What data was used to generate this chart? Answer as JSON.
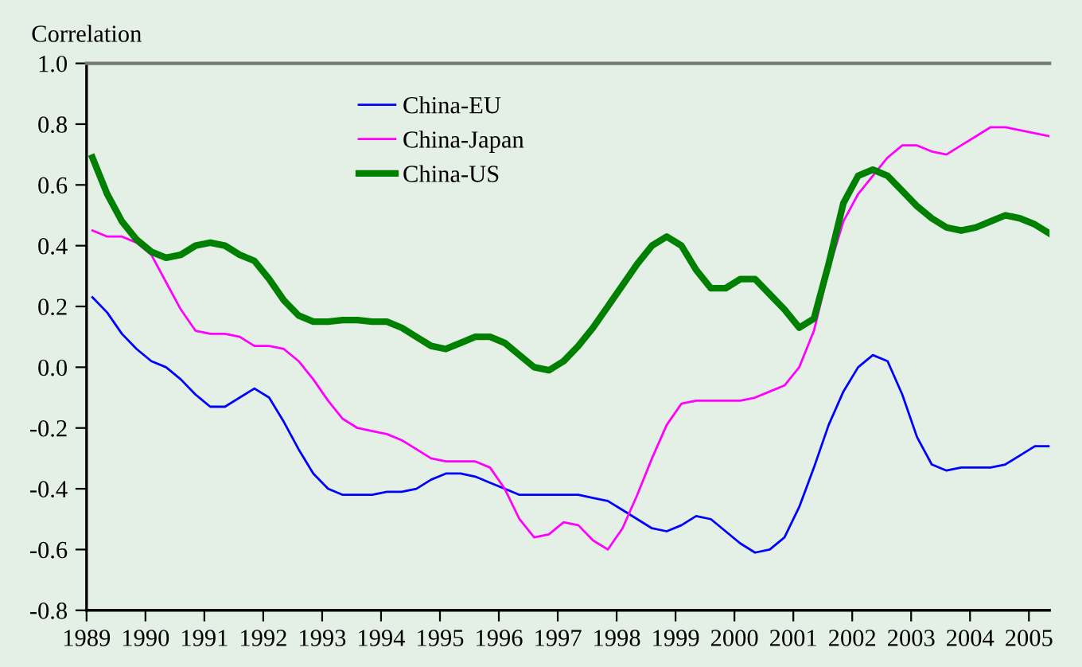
{
  "chart_data": {
    "type": "line",
    "ylabel": "Correlation",
    "x": [
      1989.1,
      1989.35,
      1989.6,
      1989.85,
      1990.1,
      1990.35,
      1990.6,
      1990.85,
      1991.1,
      1991.35,
      1991.6,
      1991.85,
      1992.1,
      1992.35,
      1992.6,
      1992.85,
      1993.1,
      1993.35,
      1993.6,
      1993.85,
      1994.1,
      1994.35,
      1994.6,
      1994.85,
      1995.1,
      1995.35,
      1995.6,
      1995.85,
      1996.1,
      1996.35,
      1996.6,
      1996.85,
      1997.1,
      1997.35,
      1997.6,
      1997.85,
      1998.1,
      1998.35,
      1998.6,
      1998.85,
      1999.1,
      1999.35,
      1999.6,
      1999.85,
      2000.1,
      2000.35,
      2000.6,
      2000.85,
      2001.1,
      2001.35,
      2001.6,
      2001.85,
      2002.1,
      2002.35,
      2002.6,
      2002.85,
      2003.1,
      2003.35,
      2003.6,
      2003.85,
      2004.1,
      2004.35,
      2004.6,
      2004.85,
      2005.1,
      2005.35
    ],
    "series": [
      {
        "name": "China-EU",
        "color": "#0000ff",
        "values": [
          0.23,
          0.18,
          0.11,
          0.06,
          0.02,
          0.0,
          -0.04,
          -0.09,
          -0.13,
          -0.13,
          -0.1,
          -0.07,
          -0.1,
          -0.18,
          -0.27,
          -0.35,
          -0.4,
          -0.42,
          -0.42,
          -0.42,
          -0.41,
          -0.41,
          -0.4,
          -0.37,
          -0.35,
          -0.35,
          -0.36,
          -0.38,
          -0.4,
          -0.42,
          -0.42,
          -0.42,
          -0.42,
          -0.42,
          -0.43,
          -0.44,
          -0.47,
          -0.5,
          -0.53,
          -0.54,
          -0.52,
          -0.49,
          -0.5,
          -0.54,
          -0.58,
          -0.61,
          -0.6,
          -0.56,
          -0.46,
          -0.33,
          -0.19,
          -0.08,
          0.0,
          0.04,
          0.02,
          -0.09,
          -0.23,
          -0.32,
          -0.34,
          -0.33,
          -0.33,
          -0.33,
          -0.32,
          -0.29,
          -0.26,
          -0.26
        ]
      },
      {
        "name": "China-Japan",
        "color": "#ff00ff",
        "values": [
          0.45,
          0.43,
          0.43,
          0.41,
          0.37,
          0.28,
          0.19,
          0.12,
          0.11,
          0.11,
          0.1,
          0.07,
          0.07,
          0.06,
          0.02,
          -0.04,
          -0.11,
          -0.17,
          -0.2,
          -0.21,
          -0.22,
          -0.24,
          -0.27,
          -0.3,
          -0.31,
          -0.31,
          -0.31,
          -0.33,
          -0.4,
          -0.5,
          -0.56,
          -0.55,
          -0.51,
          -0.52,
          -0.57,
          -0.6,
          -0.53,
          -0.42,
          -0.3,
          -0.19,
          -0.12,
          -0.11,
          -0.11,
          -0.11,
          -0.11,
          -0.1,
          -0.08,
          -0.06,
          0.0,
          0.12,
          0.32,
          0.48,
          0.57,
          0.63,
          0.69,
          0.73,
          0.73,
          0.71,
          0.7,
          0.73,
          0.76,
          0.79,
          0.79,
          0.78,
          0.77,
          0.76
        ]
      },
      {
        "name": "China-US",
        "color": "#008000",
        "values": [
          0.69,
          0.57,
          0.48,
          0.42,
          0.38,
          0.36,
          0.37,
          0.4,
          0.41,
          0.4,
          0.37,
          0.35,
          0.29,
          0.22,
          0.17,
          0.15,
          0.15,
          0.155,
          0.155,
          0.15,
          0.15,
          0.13,
          0.1,
          0.07,
          0.06,
          0.08,
          0.1,
          0.1,
          0.08,
          0.04,
          0.0,
          -0.01,
          0.02,
          0.07,
          0.13,
          0.2,
          0.27,
          0.34,
          0.4,
          0.43,
          0.4,
          0.32,
          0.26,
          0.26,
          0.29,
          0.29,
          0.24,
          0.19,
          0.13,
          0.16,
          0.34,
          0.54,
          0.63,
          0.65,
          0.63,
          0.58,
          0.53,
          0.49,
          0.46,
          0.45,
          0.46,
          0.48,
          0.5,
          0.49,
          0.47,
          0.44
        ]
      }
    ],
    "xlim": [
      1989,
      2005.35
    ],
    "xticks": [
      1989,
      1990,
      1991,
      1992,
      1993,
      1994,
      1995,
      1996,
      1997,
      1998,
      1999,
      2000,
      2001,
      2002,
      2003,
      2004,
      2005
    ],
    "ylim": [
      -0.8,
      1.0
    ],
    "yticks": [
      {
        "value": -0.8,
        "label": "-0.8"
      },
      {
        "value": -0.6,
        "label": "-0.6"
      },
      {
        "value": -0.4,
        "label": "-0.4"
      },
      {
        "value": -0.2,
        "label": "-0.2"
      },
      {
        "value": 0,
        "label": "0.0"
      },
      {
        "value": 0.2,
        "label": "0.2"
      },
      {
        "value": 0.4,
        "label": "0.4"
      },
      {
        "value": 0.6,
        "label": "0.6"
      },
      {
        "value": 0.8,
        "label": "0.8"
      },
      {
        "value": 1.0,
        "label": "1.0"
      }
    ],
    "grid": false,
    "legend": "top left",
    "marker": "none",
    "line_style": "solid"
  }
}
